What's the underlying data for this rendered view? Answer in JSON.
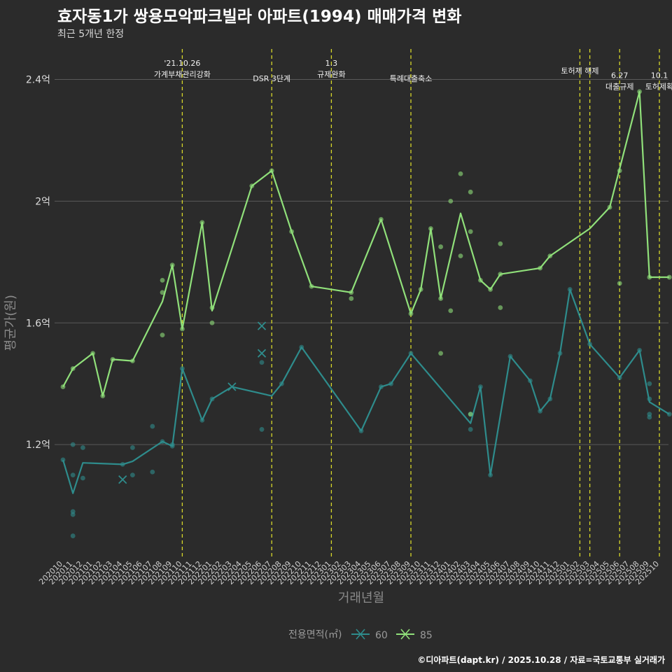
{
  "title": "효자동1가 쌍용모악파크빌라 아파트(1994) 매매가격 변화",
  "subtitle": "최근 5개년 한정",
  "caption": "©디아파트(dapt.kr) / 2025.10.28 / 자료=국토교통부 실거래가",
  "colors": {
    "s60": "#2e8c8c",
    "s85": "#90e07a",
    "event": "#d7d72a",
    "grid": "#5a5a5a",
    "bg": "#2b2b2b"
  },
  "chart_data": {
    "type": "line",
    "title": "효자동1가 쌍용모악파크빌라 아파트(1994) 매매가격 변화",
    "xlabel": "거래년월",
    "ylabel": "평균가(원)",
    "ylim": [
      0.83,
      2.5
    ],
    "yticks": [
      1.2,
      1.6,
      2.0,
      2.4
    ],
    "ytick_labels": [
      "1.2억",
      "1.6억",
      "2억",
      "2.4억"
    ],
    "x_start": "2020-10",
    "x_end": "2025-10",
    "x_tick_labels": [
      "202010",
      "202011",
      "202012",
      "202101",
      "202102",
      "202103",
      "202104",
      "202105",
      "202106",
      "202107",
      "202108",
      "202109",
      "202110",
      "202111",
      "202112",
      "202201",
      "202202",
      "202203",
      "202204",
      "202205",
      "202206",
      "202207",
      "202208",
      "202209",
      "202210",
      "202211",
      "202212",
      "202301",
      "202302",
      "202303",
      "202304",
      "202305",
      "202306",
      "202307",
      "202308",
      "202309",
      "202310",
      "202311",
      "202312",
      "202401",
      "202402",
      "202403",
      "202404",
      "202405",
      "202406",
      "202407",
      "202408",
      "202409",
      "202410",
      "202411",
      "202412",
      "202501",
      "202502",
      "202503",
      "202504",
      "202505",
      "202506",
      "202507",
      "202508",
      "202509",
      "202510"
    ],
    "legend_title": "전용면적(㎡)",
    "legend_position": "bottom",
    "series": [
      {
        "name": "60",
        "line": [
          [
            0,
            1.15
          ],
          [
            1,
            1.04
          ],
          [
            2,
            1.14
          ],
          [
            6,
            1.135
          ],
          [
            7,
            1.145
          ],
          [
            10,
            1.21
          ],
          [
            11,
            1.195
          ],
          [
            12,
            1.45
          ],
          [
            14,
            1.28
          ],
          [
            15,
            1.35
          ],
          [
            17,
            1.39
          ],
          [
            21,
            1.36
          ],
          [
            22,
            1.4
          ],
          [
            24,
            1.52
          ],
          [
            30,
            1.245
          ],
          [
            32,
            1.39
          ],
          [
            33,
            1.4
          ],
          [
            35,
            1.5
          ],
          [
            41,
            1.27
          ],
          [
            42,
            1.39
          ],
          [
            43,
            1.1
          ],
          [
            45,
            1.49
          ],
          [
            47,
            1.41
          ],
          [
            48,
            1.31
          ],
          [
            49,
            1.35
          ],
          [
            50,
            1.5
          ],
          [
            51,
            1.71
          ],
          [
            53,
            1.53
          ],
          [
            56,
            1.42
          ],
          [
            58,
            1.51
          ],
          [
            59,
            1.34
          ],
          [
            61,
            1.3
          ]
        ],
        "points": [
          [
            0,
            1.15
          ],
          [
            1,
            1.2
          ],
          [
            1,
            1.1
          ],
          [
            1,
            0.98
          ],
          [
            1,
            0.97
          ],
          [
            1,
            0.9
          ],
          [
            2,
            1.19
          ],
          [
            2,
            1.09
          ],
          [
            6,
            1.135
          ],
          [
            7,
            1.19
          ],
          [
            7,
            1.1
          ],
          [
            9,
            1.26
          ],
          [
            9,
            1.11
          ],
          [
            10,
            1.21
          ],
          [
            11,
            1.195
          ],
          [
            11,
            1.2
          ],
          [
            12,
            1.45
          ],
          [
            14,
            1.28
          ],
          [
            15,
            1.35
          ],
          [
            20,
            1.47
          ],
          [
            20,
            1.25
          ],
          [
            22,
            1.4
          ],
          [
            24,
            1.52
          ],
          [
            30,
            1.245
          ],
          [
            32,
            1.39
          ],
          [
            33,
            1.4
          ],
          [
            35,
            1.5
          ],
          [
            41,
            1.3
          ],
          [
            41,
            1.25
          ],
          [
            42,
            1.39
          ],
          [
            43,
            1.1
          ],
          [
            45,
            1.49
          ],
          [
            47,
            1.41
          ],
          [
            48,
            1.31
          ],
          [
            49,
            1.35
          ],
          [
            50,
            1.5
          ],
          [
            51,
            1.71
          ],
          [
            53,
            1.53
          ],
          [
            56,
            1.42
          ],
          [
            58,
            1.51
          ],
          [
            59,
            1.4
          ],
          [
            59,
            1.35
          ],
          [
            59,
            1.3
          ],
          [
            59,
            1.29
          ],
          [
            61,
            1.3
          ]
        ],
        "crosses": [
          [
            6,
            1.085
          ],
          [
            17,
            1.39
          ],
          [
            20,
            1.59
          ],
          [
            20,
            1.5
          ]
        ]
      },
      {
        "name": "85",
        "line": [
          [
            0,
            1.39
          ],
          [
            1,
            1.45
          ],
          [
            3,
            1.5
          ],
          [
            4,
            1.36
          ],
          [
            5,
            1.48
          ],
          [
            7,
            1.475
          ],
          [
            10,
            1.67
          ],
          [
            11,
            1.79
          ],
          [
            12,
            1.58
          ],
          [
            14,
            1.93
          ],
          [
            15,
            1.64
          ],
          [
            19,
            2.05
          ],
          [
            21,
            2.1
          ],
          [
            23,
            1.9
          ],
          [
            25,
            1.72
          ],
          [
            29,
            1.7
          ],
          [
            32,
            1.94
          ],
          [
            35,
            1.63
          ],
          [
            36,
            1.71
          ],
          [
            37,
            1.91
          ],
          [
            38,
            1.68
          ],
          [
            40,
            1.96
          ],
          [
            42,
            1.74
          ],
          [
            43,
            1.71
          ],
          [
            44,
            1.76
          ],
          [
            48,
            1.78
          ],
          [
            49,
            1.82
          ],
          [
            53,
            1.91
          ],
          [
            55,
            1.98
          ],
          [
            58,
            2.36
          ],
          [
            59,
            1.75
          ],
          [
            61,
            1.75
          ]
        ],
        "points": [
          [
            0,
            1.39
          ],
          [
            1,
            1.45
          ],
          [
            3,
            1.5
          ],
          [
            4,
            1.36
          ],
          [
            5,
            1.48
          ],
          [
            7,
            1.475
          ],
          [
            10,
            1.74
          ],
          [
            10,
            1.7
          ],
          [
            10,
            1.56
          ],
          [
            11,
            1.79
          ],
          [
            12,
            1.58
          ],
          [
            14,
            1.93
          ],
          [
            15,
            1.65
          ],
          [
            15,
            1.6
          ],
          [
            19,
            2.05
          ],
          [
            21,
            2.1
          ],
          [
            23,
            1.9
          ],
          [
            25,
            1.72
          ],
          [
            29,
            1.7
          ],
          [
            29,
            1.68
          ],
          [
            32,
            1.94
          ],
          [
            35,
            1.63
          ],
          [
            36,
            1.71
          ],
          [
            37,
            1.91
          ],
          [
            38,
            1.68
          ],
          [
            38,
            1.85
          ],
          [
            38,
            1.5
          ],
          [
            39,
            2.0
          ],
          [
            39,
            1.64
          ],
          [
            40,
            2.09
          ],
          [
            40,
            1.82
          ],
          [
            41,
            2.03
          ],
          [
            41,
            1.9
          ],
          [
            41,
            1.3
          ],
          [
            42,
            1.74
          ],
          [
            43,
            1.71
          ],
          [
            44,
            1.76
          ],
          [
            44,
            1.86
          ],
          [
            44,
            1.65
          ],
          [
            48,
            1.78
          ],
          [
            49,
            1.82
          ],
          [
            55,
            1.98
          ],
          [
            56,
            2.1
          ],
          [
            56,
            1.73
          ],
          [
            58,
            2.36
          ],
          [
            59,
            1.75
          ],
          [
            61,
            1.75
          ]
        ],
        "crosses": []
      }
    ],
    "events": [
      {
        "x": 12,
        "lines": [
          "'21.10.26",
          "가계부채관리강화"
        ],
        "level": 0
      },
      {
        "x": 21,
        "lines": [
          "DSR 3단계"
        ],
        "level": 2
      },
      {
        "x": 27,
        "lines": [
          "1.3",
          "규제완화"
        ],
        "level": 0
      },
      {
        "x": 35,
        "lines": [
          "특례대출축소"
        ],
        "level": 2
      },
      {
        "x": 52,
        "lines": [
          "토허제 해제"
        ],
        "level": 1
      },
      {
        "x": 53,
        "lines": [],
        "level": 0
      },
      {
        "x": 56,
        "lines": [
          "6.27",
          "대출규제"
        ],
        "level": 1.6
      },
      {
        "x": 60,
        "lines": [
          "10.1",
          "토허제확"
        ],
        "level": 1.6
      }
    ]
  }
}
